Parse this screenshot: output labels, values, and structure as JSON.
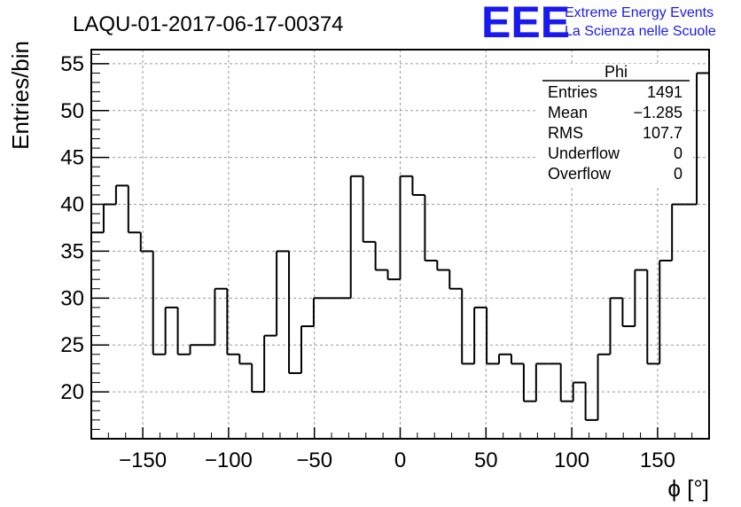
{
  "title": "LAQU-01-2017-06-17-00374",
  "logo": {
    "mark": "EEE",
    "line1": "Extreme Energy Events",
    "line2": "La Scienza nelle Scuole",
    "color": "#1a1aee"
  },
  "stats": {
    "name": "Phi",
    "rows": [
      {
        "label": "Entries",
        "value": "1491"
      },
      {
        "label": "Mean",
        "value": "−1.285"
      },
      {
        "label": "RMS",
        "value": "107.7"
      },
      {
        "label": "Underflow",
        "value": "0"
      },
      {
        "label": "Overflow",
        "value": "0"
      }
    ]
  },
  "chart_data": {
    "type": "bar",
    "style": "step-histogram",
    "title": "LAQU-01-2017-06-17-00374",
    "xlabel": "ϕ [°]",
    "ylabel": "Entries/bin",
    "xlim": [
      -180,
      180
    ],
    "ylim": [
      15,
      56.5
    ],
    "bin_width": 7.2,
    "bin_edges_start": -180,
    "values": [
      37,
      40,
      42,
      37,
      35,
      24,
      29,
      24,
      25,
      25,
      31,
      24,
      23,
      20,
      26,
      35,
      22,
      27,
      30,
      30,
      30,
      43,
      36,
      33,
      32,
      43,
      41,
      34,
      33,
      31,
      23,
      29,
      23,
      24,
      23,
      19,
      23,
      23,
      19,
      21,
      17,
      24,
      30,
      27,
      33,
      23,
      34,
      40,
      40,
      54
    ],
    "xticks": [
      -150,
      -100,
      -50,
      0,
      50,
      100,
      150
    ],
    "xtick_labels": [
      "−150",
      "−100",
      "−50",
      "0",
      "50",
      "100",
      "150"
    ],
    "yticks": [
      20,
      25,
      30,
      35,
      40,
      45,
      50,
      55
    ],
    "ytick_labels": [
      "20",
      "25",
      "30",
      "35",
      "40",
      "45",
      "50",
      "55"
    ],
    "grid": true,
    "legend": "top-right"
  }
}
